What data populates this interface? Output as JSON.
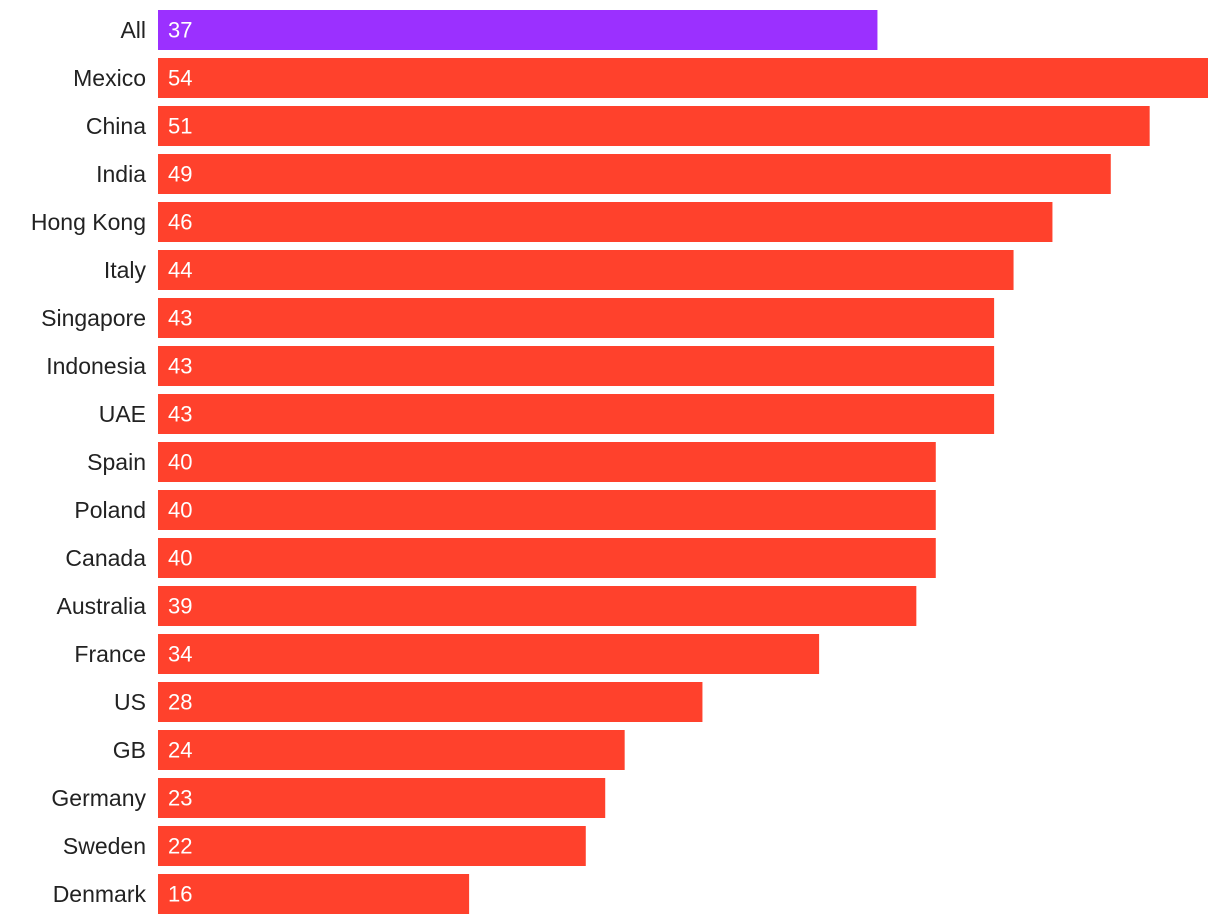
{
  "chart_data": {
    "type": "bar",
    "orientation": "horizontal",
    "title": "",
    "xlabel": "",
    "ylabel": "",
    "grid": false,
    "xlim": [
      0,
      54
    ],
    "categories": [
      "All",
      "Mexico",
      "China",
      "India",
      "Hong Kong",
      "Italy",
      "Singapore",
      "Indonesia",
      "UAE",
      "Spain",
      "Poland",
      "Canada",
      "Australia",
      "France",
      "US",
      "GB",
      "Germany",
      "Sweden",
      "Denmark"
    ],
    "values": [
      37,
      54,
      51,
      49,
      46,
      44,
      43,
      43,
      43,
      40,
      40,
      40,
      39,
      34,
      28,
      24,
      23,
      22,
      16
    ],
    "colors": {
      "highlight": "#9b30ff",
      "default": "#ff412c",
      "highlight_category": "All",
      "label_text": "#222222",
      "value_text": "#ffffff"
    }
  }
}
